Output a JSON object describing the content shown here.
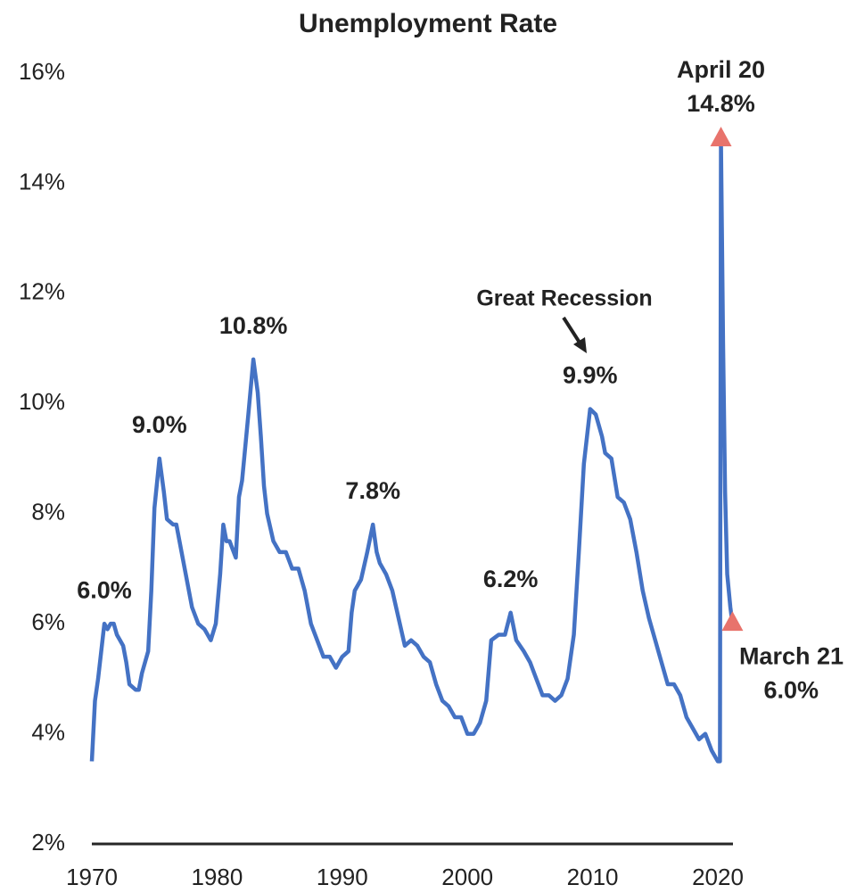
{
  "chart_data": {
    "type": "line",
    "title": "Unemployment Rate",
    "xlim": [
      1970,
      2021.21
    ],
    "xticks": [
      1970,
      1980,
      1990,
      2000,
      2010,
      2020
    ],
    "ylim": [
      2,
      16
    ],
    "yticks": [
      {
        "value": 2,
        "label": "2%"
      },
      {
        "value": 4,
        "label": "4%"
      },
      {
        "value": 6,
        "label": "6%"
      },
      {
        "value": 8,
        "label": "8%"
      },
      {
        "value": 10,
        "label": "10%"
      },
      {
        "value": 12,
        "label": "12%"
      },
      {
        "value": 14,
        "label": "14%"
      },
      {
        "value": 16,
        "label": "16%"
      }
    ],
    "grid": false,
    "series": [
      {
        "name": "Unemployment Rate",
        "color": "#4472c4",
        "x": [
          1970.0,
          1970.25,
          1970.5,
          1970.75,
          1971.0,
          1971.25,
          1971.5,
          1971.75,
          1972.0,
          1972.25,
          1972.5,
          1972.75,
          1973.0,
          1973.5,
          1973.75,
          1974.0,
          1974.5,
          1974.75,
          1975.0,
          1975.4,
          1975.75,
          1976.0,
          1976.5,
          1976.75,
          1977.0,
          1977.5,
          1978.0,
          1978.5,
          1979.0,
          1979.5,
          1979.9,
          1980.25,
          1980.5,
          1980.75,
          1981.0,
          1981.5,
          1981.75,
          1982.0,
          1982.5,
          1982.9,
          1983.25,
          1983.5,
          1983.75,
          1984.0,
          1984.5,
          1985.0,
          1985.5,
          1986.0,
          1986.5,
          1987.0,
          1987.5,
          1988.0,
          1988.5,
          1989.0,
          1989.5,
          1990.0,
          1990.5,
          1990.75,
          1991.0,
          1991.5,
          1992.0,
          1992.45,
          1992.75,
          1993.0,
          1993.5,
          1994.0,
          1994.5,
          1995.0,
          1995.5,
          1996.0,
          1996.5,
          1997.0,
          1997.5,
          1998.0,
          1998.5,
          1999.0,
          1999.5,
          2000.0,
          2000.5,
          2001.0,
          2001.5,
          2001.9,
          2002.5,
          2003.0,
          2003.45,
          2003.9,
          2004.5,
          2005.0,
          2005.5,
          2006.0,
          2006.5,
          2007.0,
          2007.5,
          2008.0,
          2008.5,
          2008.9,
          2009.3,
          2009.8,
          2010.25,
          2010.75,
          2011.0,
          2011.5,
          2012.0,
          2012.5,
          2013.0,
          2013.5,
          2014.0,
          2014.5,
          2015.0,
          2015.5,
          2016.0,
          2016.5,
          2017.0,
          2017.5,
          2018.0,
          2018.5,
          2019.0,
          2019.5,
          2020.0,
          2020.17,
          2020.25,
          2020.42,
          2020.58,
          2020.75,
          2021.0,
          2021.17
        ],
        "values": [
          3.5,
          4.6,
          5.0,
          5.5,
          6.0,
          5.9,
          6.0,
          6.0,
          5.8,
          5.7,
          5.6,
          5.3,
          4.9,
          4.8,
          4.8,
          5.1,
          5.5,
          6.6,
          8.1,
          9.0,
          8.4,
          7.9,
          7.8,
          7.8,
          7.5,
          6.9,
          6.3,
          6.0,
          5.9,
          5.7,
          6.0,
          6.9,
          7.8,
          7.5,
          7.5,
          7.2,
          8.3,
          8.6,
          9.8,
          10.8,
          10.2,
          9.4,
          8.5,
          8.0,
          7.5,
          7.3,
          7.3,
          7.0,
          7.0,
          6.6,
          6.0,
          5.7,
          5.4,
          5.4,
          5.2,
          5.4,
          5.5,
          6.2,
          6.6,
          6.8,
          7.3,
          7.8,
          7.3,
          7.1,
          6.9,
          6.6,
          6.1,
          5.6,
          5.7,
          5.6,
          5.4,
          5.3,
          4.9,
          4.6,
          4.5,
          4.3,
          4.3,
          4.0,
          4.0,
          4.2,
          4.6,
          5.7,
          5.8,
          5.8,
          6.2,
          5.7,
          5.5,
          5.3,
          5.0,
          4.7,
          4.7,
          4.6,
          4.7,
          5.0,
          5.8,
          7.3,
          8.9,
          9.9,
          9.8,
          9.4,
          9.1,
          9.0,
          8.3,
          8.2,
          7.9,
          7.3,
          6.6,
          6.1,
          5.7,
          5.3,
          4.9,
          4.9,
          4.7,
          4.3,
          4.1,
          3.9,
          4.0,
          3.7,
          3.5,
          3.5,
          14.8,
          11.1,
          8.4,
          6.9,
          6.3,
          6.0
        ]
      }
    ],
    "annotations": [
      {
        "text": "6.0%",
        "x": 1971.0,
        "y": 6.0
      },
      {
        "text": "9.0%",
        "x": 1975.4,
        "y": 9.0
      },
      {
        "text": "10.8%",
        "x": 1982.9,
        "y": 10.8
      },
      {
        "text": "7.8%",
        "x": 1992.45,
        "y": 7.8
      },
      {
        "text": "6.2%",
        "x": 2003.45,
        "y": 6.2
      },
      {
        "text": "9.9%",
        "x": 2009.8,
        "y": 9.9
      }
    ],
    "markers": [
      {
        "label": "April 20",
        "text": "14.8%",
        "x": 2020.25,
        "y": 14.8,
        "color": "#e8736c"
      },
      {
        "label": "March 21",
        "text": "6.0%",
        "x": 2021.17,
        "y": 6.0,
        "color": "#e8736c"
      }
    ],
    "callout": "Great Recession"
  }
}
